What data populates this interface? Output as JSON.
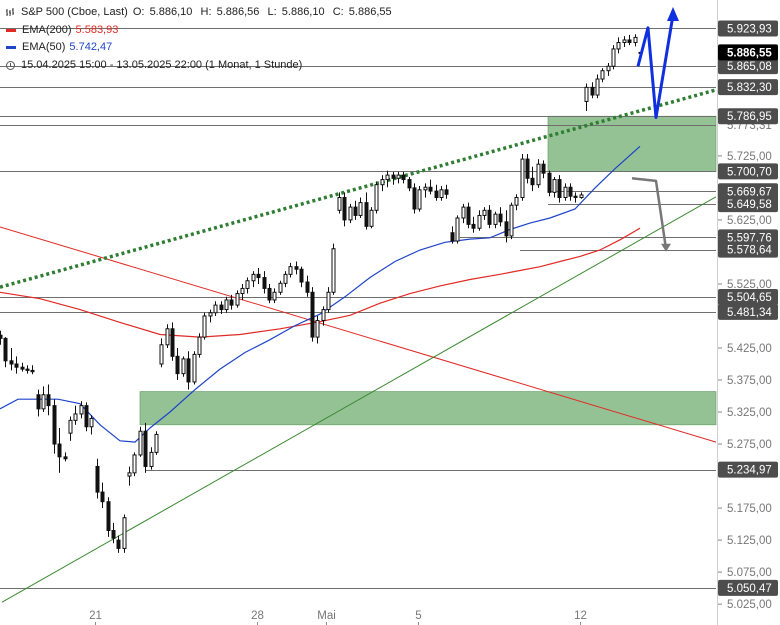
{
  "legend": {
    "instrument": "S&P 500 (Cboe, Last)",
    "ohlc": {
      "o_label": "O:",
      "o": "5.886,10",
      "h_label": "H:",
      "h": "5.886,56",
      "l_label": "L:",
      "l": "5.886,10",
      "c_label": "C:",
      "c": "5.886,55"
    },
    "ema200": {
      "label": "EMA(200)",
      "value": "5.583,93"
    },
    "ema50": {
      "label": "EMA(50)",
      "value": "5.742,47"
    },
    "period": "15.04.2025 15:00 - 13.05.2025 22:00   (1 Monat, 1 Stunde)",
    "icons": {
      "bars": "bar-chart-icon",
      "clock": "clock-icon"
    }
  },
  "colors": {
    "ema200": "#e02a24",
    "ema50": "#1e44c8",
    "support_trend": "#3a8a30",
    "dotted_trend": "#2e7d32",
    "zone": "#8fbf8f",
    "projection_blue": "#1030e0",
    "projection_gray": "#777777",
    "candle": "#111111",
    "hline": "#6f6f6f",
    "level_tag_bg": "#4d4d4d",
    "current_tag_bg": "#000000"
  },
  "chart_data": {
    "type": "candlestick",
    "instrument": "S&P 500",
    "timeframe": "1 hour",
    "x_tick_labels": [
      {
        "label": "21",
        "date": "2025-04-21"
      },
      {
        "label": "28",
        "date": "2025-04-28"
      },
      {
        "label": "Mai",
        "date": "2025-05-01"
      },
      {
        "label": "5",
        "date": "2025-05-05"
      },
      {
        "label": "12",
        "date": "2025-05-12"
      }
    ],
    "y_axis": {
      "range": [
        5025,
        5950
      ],
      "tick_labels": [
        "5.725,00",
        "5.625,00",
        "5.525,00",
        "5.425,00",
        "5.375,00",
        "5.325,00",
        "5.275,00",
        "5.175,00",
        "5.125,00",
        "5.075,00",
        "5.025,00"
      ]
    },
    "y_ticks": [
      5725,
      5625,
      5525,
      5425,
      5375,
      5325,
      5275,
      5175,
      5125,
      5075,
      5025
    ],
    "horizontal_levels": [
      {
        "label": "5.923,93",
        "value": 5923.93,
        "tagged": true
      },
      {
        "label": "5.865,08",
        "value": 5865.08,
        "tagged": true
      },
      {
        "label": "5.832,30",
        "value": 5832.3,
        "tagged": true
      },
      {
        "label": "5.786,95",
        "value": 5786.95,
        "tagged": true
      },
      {
        "label": "5.773,31",
        "value": 5773.31,
        "tagged": false
      },
      {
        "label": "5.700,70",
        "value": 5700.7,
        "tagged": true
      },
      {
        "label": "5.669,67",
        "value": 5669.67,
        "tagged": true
      },
      {
        "label": "5.649,58",
        "value": 5649.58,
        "tagged": true
      },
      {
        "label": "5.597,76",
        "value": 5597.76,
        "tagged": true
      },
      {
        "label": "5.578,64",
        "value": 5578.64,
        "tagged": true
      },
      {
        "label": "5.504,65",
        "value": 5504.65,
        "tagged": true
      },
      {
        "label": "5.481,34",
        "value": 5481.34,
        "tagged": true
      },
      {
        "label": "5.234,97",
        "value": 5234.97,
        "tagged": true
      },
      {
        "label": "5.050,47",
        "value": 5050.47,
        "tagged": true
      }
    ],
    "current_price": {
      "label": "5.886,55",
      "value": 5886.55
    },
    "zones": [
      {
        "from": 5700.7,
        "to": 5786.95
      },
      {
        "from": 5305,
        "to": 5357
      }
    ],
    "candles_ohlc": [
      [
        5445,
        5452,
        5430,
        5440
      ],
      [
        5440,
        5442,
        5395,
        5405
      ],
      [
        5405,
        5425,
        5390,
        5400
      ],
      [
        5400,
        5412,
        5385,
        5395
      ],
      [
        5395,
        5402,
        5388,
        5392
      ],
      [
        5392,
        5398,
        5385,
        5390
      ],
      [
        5390,
        5398,
        5384,
        5388
      ],
      [
        5352,
        5360,
        5318,
        5330
      ],
      [
        5330,
        5365,
        5325,
        5352
      ],
      [
        5352,
        5368,
        5320,
        5335
      ],
      [
        5335,
        5345,
        5260,
        5275
      ],
      [
        5275,
        5300,
        5230,
        5255
      ],
      [
        5255,
        5262,
        5248,
        5252
      ],
      [
        5292,
        5318,
        5280,
        5312
      ],
      [
        5312,
        5335,
        5305,
        5322
      ],
      [
        5322,
        5342,
        5315,
        5335
      ],
      [
        5335,
        5340,
        5295,
        5302
      ],
      [
        5302,
        5320,
        5290,
        5315
      ],
      [
        5240,
        5252,
        5190,
        5200
      ],
      [
        5200,
        5215,
        5175,
        5185
      ],
      [
        5185,
        5192,
        5130,
        5140
      ],
      [
        5140,
        5152,
        5120,
        5128
      ],
      [
        5125,
        5132,
        5105,
        5112
      ],
      [
        5112,
        5165,
        5105,
        5160
      ],
      [
        5225,
        5240,
        5210,
        5230
      ],
      [
        5230,
        5262,
        5225,
        5258
      ],
      [
        5258,
        5302,
        5255,
        5295
      ],
      [
        5295,
        5308,
        5230,
        5240
      ],
      [
        5240,
        5270,
        5235,
        5262
      ],
      [
        5262,
        5295,
        5258,
        5290
      ],
      [
        5400,
        5440,
        5395,
        5430
      ],
      [
        5430,
        5462,
        5425,
        5455
      ],
      [
        5455,
        5465,
        5405,
        5412
      ],
      [
        5412,
        5425,
        5375,
        5385
      ],
      [
        5385,
        5412,
        5380,
        5408
      ],
      [
        5408,
        5420,
        5360,
        5372
      ],
      [
        5372,
        5420,
        5368,
        5415
      ],
      [
        5415,
        5448,
        5410,
        5442
      ],
      [
        5442,
        5480,
        5438,
        5475
      ],
      [
        5475,
        5485,
        5465,
        5480
      ],
      [
        5480,
        5498,
        5475,
        5492
      ],
      [
        5492,
        5498,
        5478,
        5485
      ],
      [
        5485,
        5505,
        5480,
        5500
      ],
      [
        5500,
        5508,
        5485,
        5492
      ],
      [
        5492,
        5515,
        5488,
        5510
      ],
      [
        5510,
        5525,
        5500,
        5518
      ],
      [
        5518,
        5535,
        5510,
        5530
      ],
      [
        5530,
        5545,
        5520,
        5540
      ],
      [
        5540,
        5550,
        5525,
        5535
      ],
      [
        5535,
        5545,
        5510,
        5518
      ],
      [
        5518,
        5525,
        5495,
        5500
      ],
      [
        5500,
        5518,
        5495,
        5512
      ],
      [
        5512,
        5530,
        5508,
        5526
      ],
      [
        5526,
        5545,
        5520,
        5540
      ],
      [
        5540,
        5558,
        5535,
        5552
      ],
      [
        5552,
        5560,
        5540,
        5548
      ],
      [
        5548,
        5552,
        5520,
        5528
      ],
      [
        5528,
        5538,
        5505,
        5512
      ],
      [
        5512,
        5520,
        5435,
        5442
      ],
      [
        5442,
        5475,
        5432,
        5468
      ],
      [
        5468,
        5490,
        5460,
        5485
      ],
      [
        5485,
        5520,
        5480,
        5512
      ],
      [
        5512,
        5588,
        5508,
        5580
      ],
      [
        5640,
        5668,
        5635,
        5660
      ],
      [
        5660,
        5668,
        5615,
        5625
      ],
      [
        5625,
        5650,
        5620,
        5645
      ],
      [
        5645,
        5655,
        5625,
        5632
      ],
      [
        5632,
        5660,
        5628,
        5652
      ],
      [
        5652,
        5668,
        5610,
        5615
      ],
      [
        5615,
        5645,
        5612,
        5640
      ],
      [
        5640,
        5685,
        5635,
        5680
      ],
      [
        5680,
        5695,
        5670,
        5688
      ],
      [
        5688,
        5702,
        5676,
        5695
      ],
      [
        5695,
        5700,
        5680,
        5690
      ],
      [
        5690,
        5700,
        5682,
        5695
      ],
      [
        5695,
        5700,
        5682,
        5688
      ],
      [
        5688,
        5692,
        5670,
        5675
      ],
      [
        5675,
        5682,
        5635,
        5642
      ],
      [
        5642,
        5678,
        5638,
        5672
      ],
      [
        5672,
        5682,
        5660,
        5676
      ],
      [
        5676,
        5688,
        5665,
        5670
      ],
      [
        5670,
        5680,
        5655,
        5660
      ],
      [
        5660,
        5678,
        5655,
        5672
      ],
      [
        5672,
        5680,
        5658,
        5665
      ],
      [
        5605,
        5615,
        5588,
        5592
      ],
      [
        5592,
        5632,
        5588,
        5628
      ],
      [
        5628,
        5650,
        5620,
        5645
      ],
      [
        5645,
        5652,
        5612,
        5618
      ],
      [
        5618,
        5630,
        5605,
        5612
      ],
      [
        5612,
        5640,
        5608,
        5632
      ],
      [
        5632,
        5645,
        5625,
        5640
      ],
      [
        5640,
        5648,
        5612,
        5618
      ],
      [
        5618,
        5638,
        5612,
        5634
      ],
      [
        5634,
        5645,
        5615,
        5622
      ],
      [
        5622,
        5640,
        5590,
        5600
      ],
      [
        5600,
        5652,
        5595,
        5648
      ],
      [
        5648,
        5665,
        5640,
        5660
      ],
      [
        5660,
        5728,
        5655,
        5720
      ],
      [
        5720,
        5728,
        5682,
        5690
      ],
      [
        5690,
        5708,
        5670,
        5680
      ],
      [
        5680,
        5720,
        5675,
        5712
      ],
      [
        5712,
        5718,
        5690,
        5698
      ],
      [
        5698,
        5702,
        5662,
        5668
      ],
      [
        5668,
        5692,
        5660,
        5688
      ],
      [
        5688,
        5695,
        5652,
        5660
      ],
      [
        5660,
        5682,
        5655,
        5676
      ],
      [
        5676,
        5682,
        5655,
        5662
      ],
      [
        5662,
        5668,
        5652,
        5660
      ],
      [
        5660,
        5668,
        5658,
        5664
      ],
      [
        5810,
        5838,
        5795,
        5832
      ],
      [
        5832,
        5840,
        5815,
        5820
      ],
      [
        5820,
        5852,
        5815,
        5845
      ],
      [
        5845,
        5862,
        5840,
        5858
      ],
      [
        5858,
        5870,
        5850,
        5865
      ],
      [
        5865,
        5898,
        5860,
        5892
      ],
      [
        5892,
        5910,
        5885,
        5902
      ],
      [
        5902,
        5912,
        5895,
        5906
      ],
      [
        5906,
        5914,
        5898,
        5902
      ],
      [
        5902,
        5915,
        5896,
        5910
      ],
      [
        5886.1,
        5886.56,
        5886.1,
        5886.55
      ]
    ],
    "ema50": [
      [
        0,
        5330
      ],
      [
        18,
        5345
      ],
      [
        38,
        5345
      ],
      [
        58,
        5345
      ],
      [
        80,
        5338
      ],
      [
        100,
        5305
      ],
      [
        120,
        5280
      ],
      [
        135,
        5278
      ],
      [
        150,
        5300
      ],
      [
        170,
        5325
      ],
      [
        195,
        5360
      ],
      [
        220,
        5392
      ],
      [
        245,
        5418
      ],
      [
        270,
        5438
      ],
      [
        295,
        5460
      ],
      [
        320,
        5478
      ],
      [
        345,
        5505
      ],
      [
        370,
        5535
      ],
      [
        395,
        5560
      ],
      [
        420,
        5578
      ],
      [
        445,
        5590
      ],
      [
        470,
        5595
      ],
      [
        490,
        5597
      ],
      [
        510,
        5610
      ],
      [
        530,
        5620
      ],
      [
        550,
        5628
      ],
      [
        575,
        5642
      ],
      [
        595,
        5675
      ],
      [
        615,
        5705
      ],
      [
        640,
        5740
      ]
    ],
    "ema200": [
      [
        0,
        5512
      ],
      [
        40,
        5502
      ],
      [
        80,
        5485
      ],
      [
        120,
        5465
      ],
      [
        160,
        5446
      ],
      [
        200,
        5442
      ],
      [
        240,
        5446
      ],
      [
        280,
        5455
      ],
      [
        320,
        5466
      ],
      [
        350,
        5476
      ],
      [
        380,
        5495
      ],
      [
        410,
        5510
      ],
      [
        440,
        5522
      ],
      [
        470,
        5532
      ],
      [
        500,
        5540
      ],
      [
        520,
        5546
      ],
      [
        540,
        5552
      ],
      [
        560,
        5560
      ],
      [
        580,
        5568
      ],
      [
        600,
        5578
      ],
      [
        620,
        5594
      ],
      [
        640,
        5612
      ]
    ],
    "trendlines": [
      {
        "name": "red-descending-trendline",
        "from": [
          0,
          5614
        ],
        "to": [
          716,
          5278
        ]
      },
      {
        "name": "green-support-trendline",
        "from": [
          2,
          5028
        ],
        "to": [
          716,
          5661
        ]
      },
      {
        "name": "green-dotted-resistance",
        "from": [
          0,
          5520
        ],
        "to": [
          716,
          5828
        ]
      }
    ],
    "projections": {
      "blue_path": [
        [
          638,
          5865
        ],
        [
          648,
          5925
        ],
        [
          656,
          5785
        ],
        [
          673,
          5945
        ]
      ],
      "gray_path": [
        [
          632,
          5690
        ],
        [
          656,
          5686
        ],
        [
          666,
          5580
        ]
      ]
    }
  }
}
